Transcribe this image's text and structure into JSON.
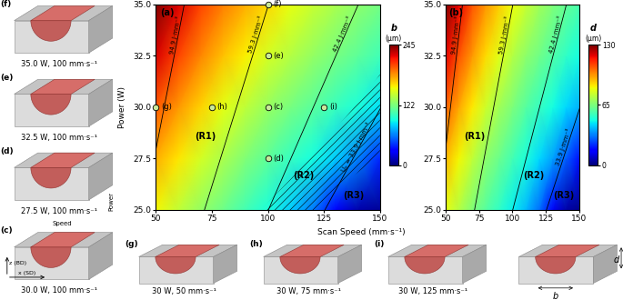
{
  "chart_data": [
    {
      "type": "heatmap",
      "panel": "(a)",
      "x": [
        50,
        60,
        70,
        80,
        90,
        100,
        110,
        120,
        130,
        140,
        150
      ],
      "y": [
        25,
        27.5,
        30,
        32.5,
        35
      ],
      "values": [
        [
          158,
          143,
          130,
          118,
          106,
          94,
          80,
          60,
          30,
          10,
          5
        ],
        [
          178,
          163,
          149,
          136,
          124,
          113,
          102,
          92,
          80,
          62,
          40
        ],
        [
          200,
          183,
          168,
          154,
          142,
          131,
          121,
          112,
          103,
          94,
          85
        ],
        [
          225,
          205,
          188,
          173,
          160,
          149,
          139,
          130,
          121,
          113,
          105
        ],
        [
          245,
          225,
          205,
          190,
          178,
          166,
          155,
          145,
          136,
          128,
          120
        ]
      ],
      "xlim": [
        50,
        150
      ],
      "ylim": [
        25,
        35
      ],
      "xticks": [
        50,
        75,
        100,
        125,
        150
      ],
      "yticks": [
        {
          "value": 25,
          "label": "25.0"
        },
        27.5,
        {
          "value": 30,
          "label": "30.0"
        },
        32.5,
        {
          "value": 35,
          "label": "35.0"
        }
      ],
      "ylabel": "Power (W)",
      "colorbar": {
        "label": "b",
        "unit": "(μm)",
        "range": [
          0,
          245
        ],
        "ticks": [
          0,
          122,
          245
        ]
      },
      "contours": [
        {
          "label": "94.9 J·mm⁻³",
          "x": [
            44.8,
            62.7
          ],
          "y": [
            25,
            35
          ]
        },
        {
          "label": "59.3 J·mm⁻³",
          "x": [
            71.7,
            100.3
          ],
          "y": [
            25,
            35
          ]
        },
        {
          "label": "42.4 J·mm⁻³",
          "x": [
            100.2,
            140.3
          ],
          "y": [
            25,
            35
          ]
        },
        {
          "label": "Uₑ = 33.9 J·mm⁻³",
          "x": [
            125.4,
            175.5
          ],
          "y": [
            25,
            35
          ]
        }
      ],
      "regions": [
        {
          "label": "(R1)"
        },
        {
          "label": "(R2)",
          "hatched_area": {
            "x": [
              97,
              110,
              125,
              140,
              150,
              150,
              148,
              135,
              122
            ],
            "y": [
              25,
              26.5,
              28.3,
              30.2,
              31.6,
              27.7,
              27.5,
              26.4,
              25
            ]
          }
        },
        {
          "label": "(R3)"
        }
      ],
      "points": {
        "labels": [
          "(g)",
          "(h)",
          "(c)",
          "(d)",
          "(e)",
          "(f)",
          "(i)"
        ],
        "x": [
          50,
          75,
          100,
          100,
          100,
          100,
          125
        ],
        "y": [
          30,
          30,
          30,
          27.5,
          32.5,
          35,
          30
        ],
        "marker": "o"
      }
    },
    {
      "type": "heatmap",
      "panel": "(b)",
      "x": [
        50,
        60,
        70,
        80,
        90,
        100,
        110,
        120,
        130,
        140,
        150
      ],
      "y": [
        25,
        27.5,
        30,
        32.5,
        35
      ],
      "values": [
        [
          82,
          74,
          66,
          59,
          53,
          47,
          40,
          30,
          14,
          5,
          2
        ],
        [
          93,
          84,
          76,
          68,
          62,
          56,
          50,
          44,
          37,
          28,
          18
        ],
        [
          105,
          95,
          86,
          78,
          71,
          65,
          59,
          54,
          49,
          44,
          39
        ],
        [
          118,
          107,
          97,
          88,
          81,
          74,
          68,
          63,
          58,
          53,
          49
        ],
        [
          130,
          118,
          107,
          98,
          90,
          83,
          77,
          71,
          66,
          61,
          57
        ]
      ],
      "xlim": [
        50,
        150
      ],
      "ylim": [
        25,
        35
      ],
      "xticks": [
        50,
        75,
        100,
        125,
        150
      ],
      "yticks": [
        {
          "value": 25,
          "label": "25.0"
        },
        27.5,
        {
          "value": 30,
          "label": "30.0"
        },
        32.5,
        {
          "value": 35,
          "label": "35.0"
        }
      ],
      "colorbar": {
        "label": "d",
        "unit": "(μm)",
        "range": [
          0,
          130
        ],
        "ticks": [
          0,
          65,
          130
        ]
      },
      "contours": [
        {
          "label": "94.9 J·mm⁻³",
          "x": [
            44.8,
            62.7
          ],
          "y": [
            25,
            35
          ]
        },
        {
          "label": "59.3 J·mm⁻³",
          "x": [
            71.7,
            100.3
          ],
          "y": [
            25,
            35
          ]
        },
        {
          "label": "42.4 J·mm⁻³",
          "x": [
            100.2,
            140.3
          ],
          "y": [
            25,
            35
          ]
        },
        {
          "label": "33.9 J·mm⁻³",
          "x": [
            125.4,
            175.5
          ],
          "y": [
            25,
            35
          ]
        }
      ],
      "regions": [
        {
          "label": "(R1)"
        },
        {
          "label": "(R2)"
        },
        {
          "label": "(R3)"
        }
      ]
    }
  ],
  "xlabel": "Scan Speed (mm·s⁻¹)",
  "direction_labels": {
    "vertical": "Power",
    "horizontal": "Speed"
  },
  "insets": [
    {
      "label": "(f)",
      "caption": "35.0 W, 100 mm·s⁻¹"
    },
    {
      "label": "(e)",
      "caption": "32.5 W, 100 mm·s⁻¹"
    },
    {
      "label": "(d)",
      "caption": "27.5 W, 100 mm·s⁻¹"
    },
    {
      "label": "(c)",
      "caption": "30.0 W, 100 mm·s⁻¹",
      "axes": [
        "z (BD)",
        "x (SD)"
      ]
    },
    {
      "label": "(g)",
      "caption": "30 W, 50 mm·s⁻¹"
    },
    {
      "label": "(h)",
      "caption": "30 W, 75 mm·s⁻¹"
    },
    {
      "label": "(i)",
      "caption": "30 W, 125 mm·s⁻¹"
    },
    {
      "schematic": [
        "d",
        "b"
      ]
    }
  ]
}
